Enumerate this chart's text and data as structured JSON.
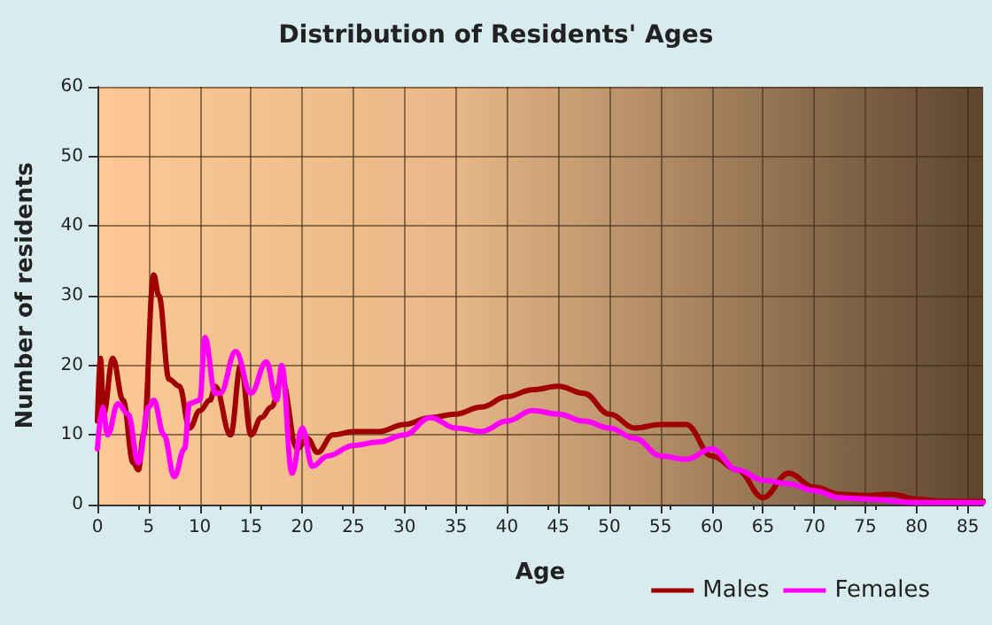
{
  "chart_data": {
    "type": "line",
    "title": "Distribution of Residents' Ages",
    "xlabel": "Age",
    "ylabel": "Number of residents",
    "xlim": [
      0,
      86.5
    ],
    "xticks": [
      0,
      5,
      10,
      15,
      20,
      25,
      30,
      35,
      40,
      45,
      50,
      55,
      60,
      65,
      70,
      75,
      80,
      85
    ],
    "ylim": [
      0,
      60
    ],
    "yticks": [
      0,
      10,
      20,
      30,
      40,
      50,
      60
    ],
    "grid": true,
    "legend": "bottom right",
    "marker": "none",
    "line_style": "solid",
    "series": [
      {
        "name": "Males",
        "color": "#a00000",
        "x": [
          0,
          0.3,
          0.6,
          1.5,
          2.5,
          3.5,
          4,
          4.5,
          5.5,
          6,
          7,
          8,
          9,
          10,
          11,
          11.5,
          13,
          14,
          15,
          16,
          17,
          18,
          19.5,
          20.5,
          21.5,
          23,
          25,
          27.5,
          30,
          32.5,
          35,
          37.5,
          40,
          42.5,
          45,
          47.5,
          50,
          52.5,
          55,
          57.5,
          60,
          62.5,
          65,
          67.5,
          70,
          72.5,
          75,
          77.5,
          80,
          82.5,
          86.5
        ],
        "values": [
          12,
          21,
          13,
          21,
          15,
          6,
          5,
          10,
          33,
          30,
          18,
          17,
          11,
          13.5,
          15,
          17,
          10,
          20,
          10,
          12.5,
          14,
          18,
          8,
          9.5,
          7.5,
          10,
          10.5,
          10.5,
          11.5,
          12.5,
          13,
          14,
          15.5,
          16.5,
          17,
          16,
          13,
          11,
          11.5,
          11.5,
          7,
          5,
          1,
          4.5,
          2.5,
          1.5,
          1.3,
          1.5,
          0.8,
          0.5,
          0.5
        ]
      },
      {
        "name": "Females",
        "color": "#ff00ff",
        "x": [
          0,
          0.5,
          1,
          2,
          3,
          4,
          5,
          5.5,
          6.5,
          7.5,
          8.5,
          9,
          10,
          10.5,
          11.5,
          12,
          13.5,
          15,
          16.5,
          17.5,
          18,
          19,
          20,
          21,
          22.5,
          25,
          27.5,
          30,
          32.5,
          35,
          37.5,
          40,
          42.5,
          45,
          47.5,
          50,
          52.5,
          55,
          57.5,
          60,
          62.5,
          65,
          67.5,
          70,
          72.5,
          75,
          80,
          86.5
        ],
        "values": [
          8,
          14,
          10,
          14.5,
          13,
          6,
          14,
          15,
          10,
          4,
          8,
          14.5,
          15,
          24,
          16,
          16,
          22,
          16,
          20.5,
          15,
          20,
          4.5,
          11,
          5.5,
          7,
          8.5,
          9,
          10,
          12.5,
          11,
          10.5,
          12,
          13.5,
          13,
          12,
          11,
          9.5,
          7,
          6.5,
          8,
          5,
          3.5,
          3,
          2,
          1,
          0.8,
          0.3,
          0.3
        ]
      }
    ]
  }
}
